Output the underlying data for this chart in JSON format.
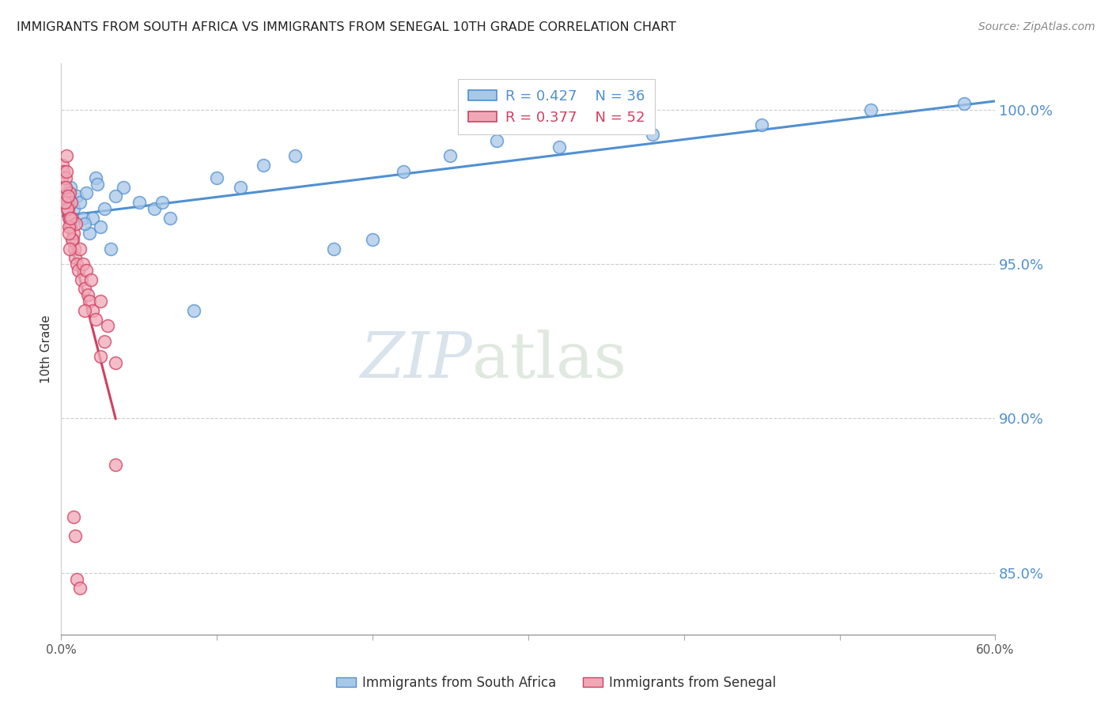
{
  "title": "IMMIGRANTS FROM SOUTH AFRICA VS IMMIGRANTS FROM SENEGAL 10TH GRADE CORRELATION CHART",
  "source": "Source: ZipAtlas.com",
  "ylabel": "10th Grade",
  "y_ticks": [
    85.0,
    90.0,
    95.0,
    100.0
  ],
  "y_tick_labels": [
    "85.0%",
    "90.0%",
    "95.0%",
    "100.0%"
  ],
  "xlim": [
    0.0,
    60.0
  ],
  "ylim": [
    83.0,
    101.5
  ],
  "blue_color": "#a8c8e8",
  "pink_color": "#f0a8b8",
  "blue_line_color": "#5090d0",
  "pink_line_color": "#d04060",
  "legend_blue_text": "R = 0.427    N = 36",
  "legend_pink_text": "R = 0.377    N = 52",
  "grid_color": "#cccccc",
  "watermark_zip": "ZIP",
  "watermark_atlas": "atlas",
  "south_africa_x": [
    0.4,
    0.6,
    0.8,
    1.0,
    1.2,
    1.4,
    1.6,
    1.8,
    2.0,
    2.2,
    2.5,
    2.8,
    3.2,
    4.0,
    5.0,
    6.0,
    7.0,
    8.5,
    10.0,
    11.5,
    13.0,
    15.0,
    17.5,
    20.0,
    22.0,
    25.0,
    28.0,
    32.0,
    38.0,
    45.0,
    52.0,
    58.0,
    3.5,
    1.5,
    2.3,
    6.5
  ],
  "south_africa_y": [
    97.0,
    97.5,
    96.8,
    97.2,
    97.0,
    96.5,
    97.3,
    96.0,
    96.5,
    97.8,
    96.2,
    96.8,
    95.5,
    97.5,
    97.0,
    96.8,
    96.5,
    93.5,
    97.8,
    97.5,
    98.2,
    98.5,
    95.5,
    95.8,
    98.0,
    98.5,
    99.0,
    98.8,
    99.2,
    99.5,
    100.0,
    100.2,
    97.2,
    96.3,
    97.6,
    97.0
  ],
  "senegal_x": [
    0.05,
    0.1,
    0.15,
    0.2,
    0.25,
    0.3,
    0.35,
    0.4,
    0.45,
    0.5,
    0.55,
    0.6,
    0.65,
    0.7,
    0.75,
    0.8,
    0.85,
    0.9,
    0.95,
    1.0,
    1.1,
    1.2,
    1.3,
    1.4,
    1.5,
    1.6,
    1.7,
    1.8,
    1.9,
    2.0,
    2.2,
    2.5,
    2.8,
    3.0,
    3.5,
    0.3,
    0.4,
    0.5,
    0.6,
    0.7,
    0.25,
    0.35,
    0.45,
    0.5,
    0.55,
    1.5,
    2.5,
    3.5,
    0.8,
    0.9,
    1.0,
    1.2
  ],
  "senegal_y": [
    97.8,
    98.2,
    98.0,
    97.5,
    97.2,
    97.8,
    98.5,
    97.0,
    96.8,
    96.5,
    97.3,
    96.2,
    97.0,
    96.5,
    95.8,
    96.0,
    95.5,
    95.2,
    96.3,
    95.0,
    94.8,
    95.5,
    94.5,
    95.0,
    94.2,
    94.8,
    94.0,
    93.8,
    94.5,
    93.5,
    93.2,
    93.8,
    92.5,
    93.0,
    91.8,
    97.5,
    96.8,
    96.2,
    96.5,
    95.8,
    97.0,
    98.0,
    97.2,
    96.0,
    95.5,
    93.5,
    92.0,
    88.5,
    86.8,
    86.2,
    84.8,
    84.5
  ]
}
